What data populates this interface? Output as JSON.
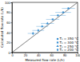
{
  "chart_data": {
    "type": "scatter",
    "x_label": "Measured flow rate (L/h)",
    "y_label": "Calculated flow rate (L/h)",
    "xlim": [
      0,
      100
    ],
    "ylim": [
      0,
      100
    ],
    "xticks": [
      0,
      20,
      40,
      60,
      80,
      100
    ],
    "yticks": [
      0,
      20,
      40,
      60,
      80,
      100
    ],
    "legend": "lower right",
    "series": [
      {
        "name": "Tₛ = 350 °C",
        "color": "#3a8fd0",
        "marker": "circle",
        "x": [
          78,
          86
        ],
        "y": [
          80,
          88
        ],
        "x_error": [
          12,
          10
        ]
      },
      {
        "name": "Tₛ = 300 °C",
        "color": "#3a8fd0",
        "marker": "square",
        "x": [
          62,
          70
        ],
        "y": [
          66,
          74
        ],
        "x_error": [
          10,
          12
        ]
      },
      {
        "name": "Tₛ = 250 °C",
        "color": "#3a8fd0",
        "marker": "triangle",
        "x": [
          46,
          54
        ],
        "y": [
          52,
          58
        ],
        "x_error": [
          9,
          10
        ]
      },
      {
        "name": "Tₛ = 200 °C",
        "color": "#3a8fd0",
        "marker": "diamond",
        "x": [
          32,
          40
        ],
        "y": [
          38,
          44
        ],
        "x_error": [
          8,
          9
        ]
      }
    ]
  }
}
